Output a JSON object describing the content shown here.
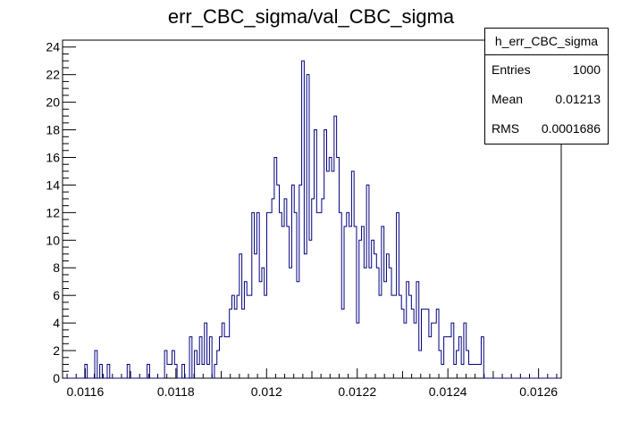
{
  "title": "err_CBC_sigma/val_CBC_sigma",
  "stats": {
    "name": "h_err_CBC_sigma",
    "rows": [
      {
        "key": "Entries",
        "value": "1000"
      },
      {
        "key": "Mean",
        "value": "0.01213"
      },
      {
        "key": "RMS",
        "value": "0.0001686"
      }
    ]
  },
  "chart_data": {
    "type": "histogram",
    "title": "err_CBC_sigma/val_CBC_sigma",
    "xlim": [
      0.01155,
      0.01265
    ],
    "ylim": [
      0,
      24.5
    ],
    "x_ticks": [
      0.0116,
      0.0118,
      0.012,
      0.0122,
      0.0124,
      0.0126
    ],
    "x_tick_labels": [
      "0.0116",
      "0.0118",
      "0.012",
      "0.0122",
      "0.0124",
      "0.0126"
    ],
    "y_ticks": [
      0,
      2,
      4,
      6,
      8,
      10,
      12,
      14,
      16,
      18,
      20,
      22,
      24
    ],
    "y_tick_labels": [
      "0",
      "2",
      "4",
      "6",
      "8",
      "10",
      "12",
      "14",
      "16",
      "18",
      "20",
      "22",
      "24"
    ],
    "line_color": "#000080",
    "bin_start": 0.011555,
    "bin_width": 5.5e-06,
    "counts": [
      0,
      0,
      0,
      0,
      0,
      0,
      0,
      0,
      1,
      0,
      0,
      0,
      2,
      0,
      1,
      0,
      0,
      1,
      0,
      0,
      0,
      0,
      0,
      0,
      0,
      1,
      0,
      0,
      0,
      0,
      0,
      0,
      0,
      1,
      0,
      0,
      0,
      0,
      0,
      0,
      2,
      1,
      1,
      2,
      1,
      0,
      0,
      1,
      0,
      0,
      3,
      0,
      2,
      1,
      3,
      1,
      4,
      1,
      3,
      0,
      1,
      2,
      3,
      4,
      3,
      3,
      5,
      6,
      5,
      6,
      9,
      5,
      7,
      6,
      6,
      12,
      9,
      12,
      7,
      8,
      6,
      12,
      12,
      13,
      16,
      14,
      12,
      11,
      13,
      11,
      8,
      14,
      12,
      7,
      14,
      23,
      9,
      22,
      10,
      13,
      18,
      12,
      12,
      13,
      18,
      15,
      16,
      15,
      19,
      16,
      12,
      5,
      11,
      12,
      11,
      15,
      11,
      4,
      10,
      11,
      8,
      14,
      8,
      10,
      9,
      8,
      6,
      11,
      7,
      9,
      8,
      6,
      6,
      12,
      6,
      5,
      4,
      7,
      6,
      5,
      4,
      7,
      2,
      5,
      5,
      5,
      3,
      4,
      4,
      5,
      2,
      1,
      3,
      3,
      3,
      4,
      1,
      2,
      3,
      1,
      4,
      2,
      1,
      1,
      1,
      1,
      1,
      3,
      0,
      0,
      0,
      0,
      0,
      0,
      0,
      0,
      0,
      0,
      0,
      0,
      0,
      0,
      0,
      0,
      0,
      0,
      0,
      0,
      0,
      0,
      0,
      0,
      0,
      0,
      0,
      0,
      0,
      0,
      0
    ]
  }
}
